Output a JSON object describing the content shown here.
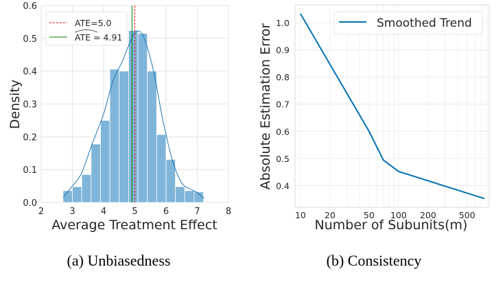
{
  "chart_data": [
    {
      "type": "bar",
      "subtype": "histogram-with-kde",
      "caption": "(a) Unbiasedness",
      "xlabel": "Average Treatment Effect",
      "ylabel": "Density",
      "xlim": [
        2,
        8
      ],
      "ylim": [
        0,
        0.6
      ],
      "xticks": [
        "2",
        "3",
        "4",
        "5",
        "6",
        "7",
        "8"
      ],
      "yticks": [
        "0.0",
        "0.1",
        "0.2",
        "0.3",
        "0.4",
        "0.5",
        "0.6"
      ],
      "grid": true,
      "bin_start": 2.7,
      "bin_width": 0.3,
      "values": [
        0.036,
        0.048,
        0.085,
        0.178,
        0.25,
        0.406,
        0.4,
        0.524,
        0.515,
        0.4,
        0.207,
        0.131,
        0.048,
        0.036,
        0.032
      ],
      "kde": {
        "x": [
          2.7,
          3.0,
          3.3,
          3.6,
          4.0,
          4.3,
          4.6,
          4.9,
          5.1,
          5.3,
          5.6,
          5.9,
          6.2,
          6.5,
          6.8,
          7.0,
          7.22
        ],
        "y": [
          0.015,
          0.05,
          0.09,
          0.17,
          0.27,
          0.37,
          0.43,
          0.5,
          0.522,
          0.5,
          0.4,
          0.25,
          0.13,
          0.06,
          0.04,
          0.03,
          0.012
        ]
      },
      "vlines": [
        {
          "label": "ATE=5.0",
          "x": 5.0,
          "color": "#ff0000",
          "style": "dashed"
        },
        {
          "label": "ATE = 4.91",
          "x": 4.91,
          "color": "#008000",
          "style": "solid",
          "hat": true
        }
      ],
      "bar_color": "#7fb5d8",
      "kde_color": "#1f77b4",
      "legend": "top-left"
    },
    {
      "type": "line",
      "caption": "(b) Consistency",
      "xlabel": "Number of Subunits(m)",
      "ylabel": "Absolute Estimation Error",
      "xscale": "log",
      "xlim": [
        8.8,
        840
      ],
      "ylim": [
        0.32,
        1.066
      ],
      "xticks": [
        "10",
        "20",
        "50",
        "100",
        "200",
        "500"
      ],
      "xtick_values": [
        10,
        20,
        50,
        100,
        200,
        500
      ],
      "yticks": [
        "0.4",
        "0.5",
        "0.6",
        "0.7",
        "0.8",
        "0.9",
        "1.0"
      ],
      "grid": true,
      "series": [
        {
          "name": "Smoothed Trend",
          "color": "#0072b2",
          "x": [
            10,
            50,
            70,
            100,
            750
          ],
          "y": [
            1.033,
            0.6,
            0.494,
            0.452,
            0.352
          ]
        }
      ],
      "legend": "top-right"
    }
  ]
}
